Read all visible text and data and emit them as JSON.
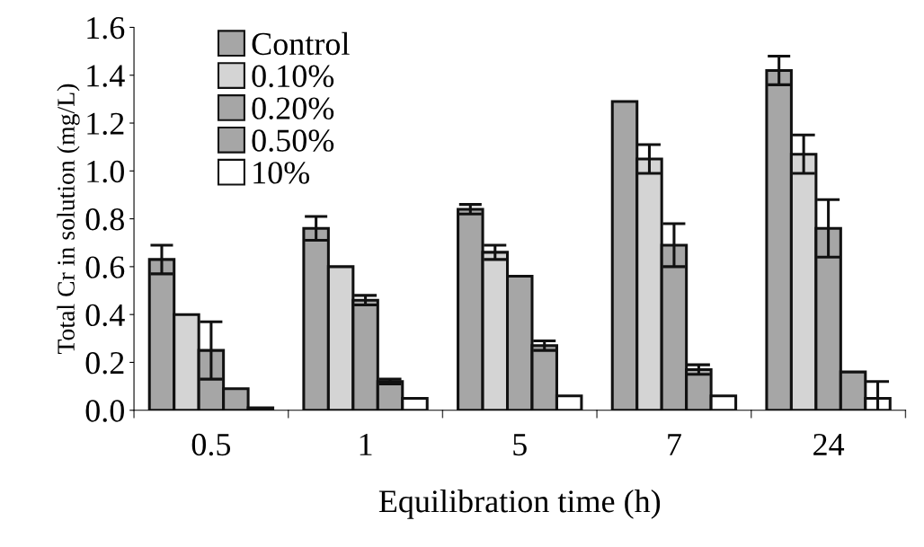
{
  "chart_data": {
    "type": "bar",
    "xlabel": "Equilibration time (h)",
    "ylabel": "Total Cr in solution (mg/L)",
    "categories": [
      "0.5",
      "1",
      "5",
      "7",
      "24"
    ],
    "series": [
      {
        "name": "Control",
        "color": "#a6a6a6",
        "values": [
          0.63,
          0.76,
          0.84,
          1.29,
          1.42
        ],
        "errors": [
          0.06,
          0.05,
          0.02,
          null,
          0.06
        ]
      },
      {
        "name": "0.10%",
        "color": "#d4d4d4",
        "values": [
          0.4,
          0.6,
          0.66,
          1.05,
          1.07
        ],
        "errors": [
          null,
          null,
          0.03,
          0.06,
          0.08
        ]
      },
      {
        "name": "0.20%",
        "color": "#a6a6a6",
        "values": [
          0.25,
          0.46,
          0.56,
          0.69,
          0.76
        ],
        "errors": [
          0.12,
          0.02,
          null,
          0.09,
          0.12
        ]
      },
      {
        "name": "0.50%",
        "color": "#a6a6a6",
        "values": [
          0.09,
          0.12,
          0.27,
          0.17,
          0.16
        ],
        "errors": [
          null,
          0.01,
          0.02,
          0.02,
          null
        ]
      },
      {
        "name": "10%",
        "color": "#ffffff",
        "values": [
          0.01,
          0.05,
          0.06,
          0.06,
          0.05
        ],
        "errors": [
          null,
          null,
          null,
          null,
          0.07
        ]
      }
    ],
    "ylim": [
      0,
      1.6
    ],
    "yticks": [
      {
        "value": 0,
        "label": "0.0"
      },
      {
        "value": 0.2,
        "label": "0.2"
      },
      {
        "value": 0.4,
        "label": "0.4"
      },
      {
        "value": 0.6,
        "label": "0.6"
      },
      {
        "value": 0.8,
        "label": "0.8"
      },
      {
        "value": 1.0,
        "label": "1.0"
      },
      {
        "value": 1.2,
        "label": "1.2"
      },
      {
        "value": 1.4,
        "label": "1.4"
      },
      {
        "value": 1.6,
        "label": "1.6"
      }
    ],
    "legend": "top left",
    "grid": false
  }
}
